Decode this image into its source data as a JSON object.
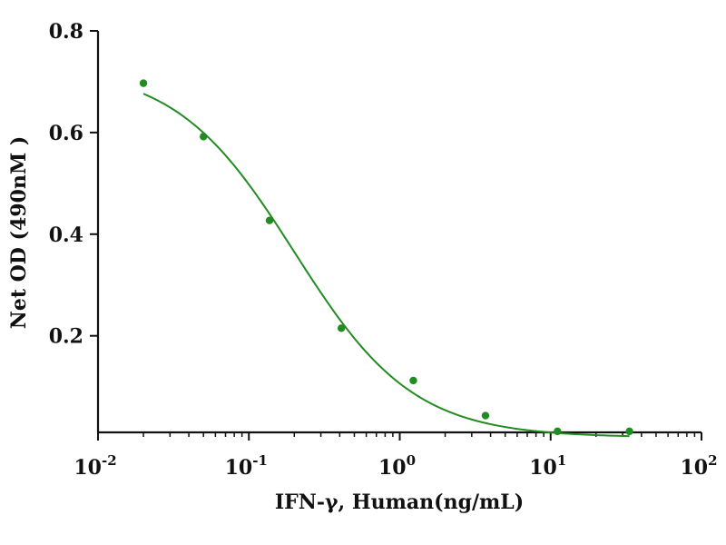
{
  "chart_data": {
    "type": "scatter",
    "title": "",
    "xlabel": "IFN-γ, Human(ng/mL)",
    "ylabel": "Net OD (490nM )",
    "x_scale": "log",
    "xlim": [
      0.01,
      100
    ],
    "ylim": [
      0.01,
      0.8
    ],
    "x_ticks": [
      {
        "base": "10",
        "exp": "-2",
        "value": 0.01
      },
      {
        "base": "10",
        "exp": "-1",
        "value": 0.1
      },
      {
        "base": "10",
        "exp": "0",
        "value": 1
      },
      {
        "base": "10",
        "exp": "1",
        "value": 10
      },
      {
        "base": "10",
        "exp": "2",
        "value": 100
      }
    ],
    "y_ticks": [
      {
        "label": "0.2",
        "value": 0.2
      },
      {
        "label": "0.4",
        "value": 0.4
      },
      {
        "label": "0.6",
        "value": 0.6
      },
      {
        "label": "0.8",
        "value": 0.8
      }
    ],
    "grid": false,
    "legend": "none",
    "color": "#228B22",
    "series": [
      {
        "x": [
          0.02,
          0.05,
          0.137,
          0.41,
          1.23,
          3.7,
          11.1,
          33.3
        ],
        "y": [
          0.697,
          0.592,
          0.427,
          0.215,
          0.112,
          0.043,
          0.012,
          0.012
        ]
      }
    ],
    "fit": {
      "type": "4PL",
      "top": 0.73,
      "bottom": 0.0,
      "ec50": 0.2,
      "hill": 1.1
    }
  }
}
